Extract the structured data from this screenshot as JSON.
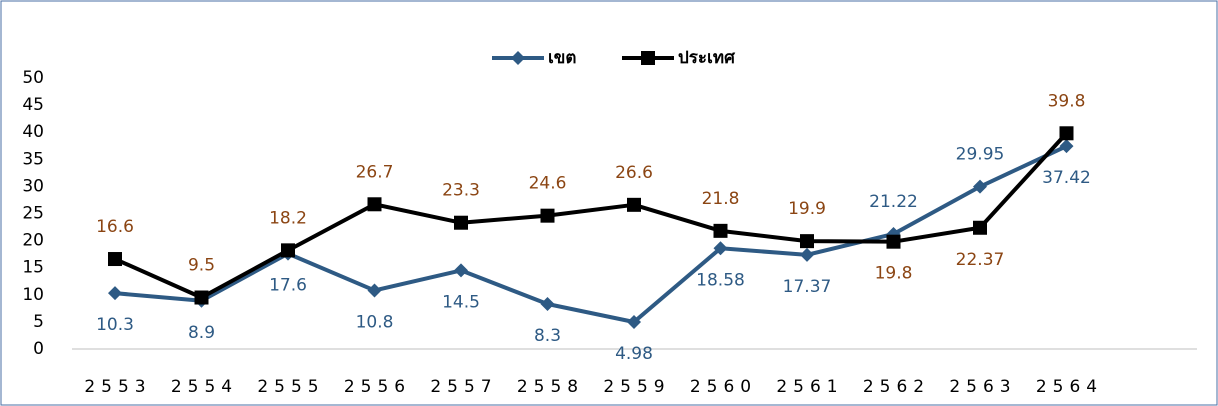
{
  "chart_data": {
    "type": "line",
    "categories": [
      "2553",
      "2554",
      "2555",
      "2556",
      "2557",
      "2558",
      "2559",
      "2560",
      "2561",
      "2562",
      "2563",
      "2564"
    ],
    "series": [
      {
        "name": "เขต",
        "color": "#2e5a84",
        "label_color": "#2e5a84",
        "marker": "diamond",
        "values": [
          10.3,
          8.9,
          17.6,
          10.8,
          14.5,
          8.3,
          4.98,
          18.58,
          17.37,
          21.22,
          29.95,
          37.42
        ]
      },
      {
        "name": "ประเทศ",
        "color": "#000000",
        "label_color": "#8b4513",
        "marker": "square",
        "values": [
          16.6,
          9.5,
          18.2,
          26.7,
          23.3,
          24.6,
          26.6,
          21.8,
          19.9,
          19.8,
          22.37,
          39.8
        ]
      }
    ],
    "ylim": [
      0,
      50
    ],
    "yticks": [
      0,
      5,
      10,
      15,
      20,
      25,
      30,
      35,
      40,
      45,
      50
    ],
    "grid": false,
    "legend": "top"
  }
}
